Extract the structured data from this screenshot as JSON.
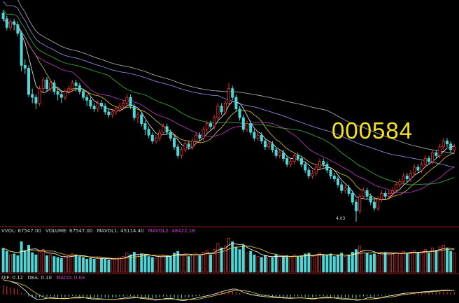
{
  "ticker": "000584",
  "colors": {
    "up": "#e83434",
    "down": "#4fd6d6",
    "ma": [
      "#ffffff",
      "#f0d040",
      "#d040d0",
      "#40c040",
      "#a0a0ff",
      "#c0c0c0"
    ],
    "divider": "#8b1c1c",
    "volume_label": "#d0d0d0",
    "mavol2_label": "#d040d0",
    "macd_label": "#d040d0"
  },
  "volume_legend": {
    "vvol": "VVOL: 67547.00",
    "volume": "VOLUME: 67547.00",
    "mavol1": "MAVOL1: 45114.40",
    "mavol2": "MAVOL2: 48422.18"
  },
  "macd_legend": {
    "dif": "DIF: 0.12",
    "dea": "DEA: 0.10",
    "macd": "MACD: 0.03"
  },
  "chart_data": {
    "type": "candlestick",
    "title": "",
    "xlabel": "",
    "ylabel": "",
    "grid": false,
    "ylim": [
      4.0,
      11.5
    ],
    "low_annotation": "4.03",
    "candles": [
      [
        11.2,
        11.0,
        11.3,
        10.9
      ],
      [
        11.0,
        10.7,
        11.1,
        10.6
      ],
      [
        10.7,
        10.9,
        11.0,
        10.6
      ],
      [
        10.9,
        10.8,
        11.0,
        10.6
      ],
      [
        10.8,
        10.5,
        10.9,
        10.4
      ],
      [
        10.5,
        9.4,
        10.6,
        9.2
      ],
      [
        9.4,
        9.3,
        9.6,
        9.1
      ],
      [
        9.3,
        8.4,
        9.4,
        8.3
      ],
      [
        8.4,
        8.3,
        8.6,
        8.1
      ],
      [
        8.3,
        8.1,
        8.4,
        7.9
      ],
      [
        8.1,
        8.6,
        8.7,
        8.0
      ],
      [
        8.6,
        8.9,
        9.0,
        8.5
      ],
      [
        8.9,
        8.6,
        9.0,
        8.5
      ],
      [
        8.6,
        8.8,
        8.9,
        8.5
      ],
      [
        8.8,
        8.5,
        8.9,
        8.4
      ],
      [
        8.5,
        8.4,
        8.6,
        8.2
      ],
      [
        8.4,
        8.3,
        8.5,
        8.1
      ],
      [
        8.3,
        8.5,
        8.6,
        8.2
      ],
      [
        8.5,
        8.6,
        8.7,
        8.4
      ],
      [
        8.6,
        8.8,
        8.9,
        8.5
      ],
      [
        8.8,
        8.7,
        8.9,
        8.5
      ],
      [
        8.7,
        8.5,
        8.8,
        8.4
      ],
      [
        8.5,
        8.3,
        8.6,
        8.2
      ],
      [
        8.3,
        8.2,
        8.4,
        8.0
      ],
      [
        8.2,
        8.0,
        8.3,
        7.9
      ],
      [
        8.0,
        7.9,
        8.1,
        7.8
      ],
      [
        7.9,
        8.1,
        8.2,
        7.8
      ],
      [
        8.1,
        8.0,
        8.2,
        7.9
      ],
      [
        8.0,
        7.8,
        8.1,
        7.7
      ],
      [
        7.8,
        7.7,
        7.9,
        7.6
      ],
      [
        7.7,
        7.8,
        7.9,
        7.6
      ],
      [
        7.8,
        7.9,
        8.0,
        7.7
      ],
      [
        7.9,
        8.0,
        8.1,
        7.8
      ],
      [
        8.0,
        8.1,
        8.2,
        7.9
      ],
      [
        8.1,
        8.3,
        8.4,
        8.0
      ],
      [
        8.3,
        8.0,
        8.4,
        7.9
      ],
      [
        8.0,
        7.6,
        8.1,
        7.5
      ],
      [
        7.6,
        7.7,
        7.8,
        7.4
      ],
      [
        7.7,
        7.4,
        7.8,
        7.3
      ],
      [
        7.4,
        7.2,
        7.5,
        7.0
      ],
      [
        7.2,
        7.0,
        7.3,
        6.9
      ],
      [
        7.0,
        6.8,
        7.1,
        6.7
      ],
      [
        6.8,
        6.9,
        7.0,
        6.7
      ],
      [
        6.9,
        7.1,
        7.2,
        6.8
      ],
      [
        7.1,
        7.3,
        7.4,
        7.0
      ],
      [
        7.3,
        7.1,
        7.4,
        7.0
      ],
      [
        7.1,
        6.9,
        7.2,
        6.8
      ],
      [
        6.9,
        6.6,
        7.0,
        6.5
      ],
      [
        6.6,
        6.3,
        6.7,
        6.2
      ],
      [
        6.3,
        6.5,
        6.6,
        6.2
      ],
      [
        6.5,
        6.7,
        6.8,
        6.4
      ],
      [
        6.7,
        6.6,
        6.8,
        6.5
      ],
      [
        6.6,
        6.8,
        6.9,
        6.5
      ],
      [
        6.8,
        7.0,
        7.1,
        6.7
      ],
      [
        7.0,
        6.9,
        7.1,
        6.8
      ],
      [
        6.9,
        7.2,
        7.3,
        6.8
      ],
      [
        7.2,
        7.4,
        7.5,
        7.1
      ],
      [
        7.4,
        7.3,
        7.5,
        7.2
      ],
      [
        7.3,
        7.6,
        7.7,
        7.2
      ],
      [
        7.6,
        8.0,
        8.1,
        7.5
      ],
      [
        8.0,
        7.8,
        8.1,
        7.7
      ],
      [
        7.8,
        8.1,
        8.2,
        7.7
      ],
      [
        8.1,
        8.6,
        8.8,
        8.0
      ],
      [
        8.6,
        8.3,
        8.7,
        8.2
      ],
      [
        8.3,
        7.9,
        8.4,
        7.8
      ],
      [
        7.9,
        7.6,
        8.0,
        7.5
      ],
      [
        7.6,
        7.2,
        7.7,
        7.1
      ],
      [
        7.2,
        7.4,
        7.5,
        7.1
      ],
      [
        7.4,
        7.1,
        7.5,
        7.0
      ],
      [
        7.1,
        6.9,
        7.2,
        6.8
      ],
      [
        6.9,
        7.0,
        7.1,
        6.8
      ],
      [
        7.0,
        6.8,
        7.1,
        6.7
      ],
      [
        6.8,
        6.6,
        6.9,
        6.5
      ],
      [
        6.6,
        6.7,
        6.8,
        6.5
      ],
      [
        6.7,
        6.5,
        6.8,
        6.4
      ],
      [
        6.5,
        6.3,
        6.6,
        6.2
      ],
      [
        6.3,
        6.4,
        6.5,
        6.2
      ],
      [
        6.4,
        6.2,
        6.5,
        6.1
      ],
      [
        6.2,
        6.0,
        6.3,
        5.9
      ],
      [
        6.0,
        6.1,
        6.2,
        5.9
      ],
      [
        6.1,
        6.3,
        6.4,
        6.0
      ],
      [
        6.3,
        6.2,
        6.4,
        6.1
      ],
      [
        6.2,
        6.0,
        6.3,
        5.9
      ],
      [
        6.0,
        5.8,
        6.1,
        5.7
      ],
      [
        5.8,
        5.6,
        5.9,
        5.5
      ],
      [
        5.6,
        5.7,
        5.8,
        5.5
      ],
      [
        5.7,
        5.9,
        6.0,
        5.6
      ],
      [
        5.9,
        6.1,
        6.2,
        5.8
      ],
      [
        6.1,
        6.0,
        6.2,
        5.9
      ],
      [
        6.0,
        5.8,
        6.1,
        5.7
      ],
      [
        5.8,
        5.6,
        5.9,
        5.5
      ],
      [
        5.6,
        5.5,
        5.7,
        5.4
      ],
      [
        5.5,
        5.3,
        5.6,
        5.2
      ],
      [
        5.3,
        5.1,
        5.4,
        5.0
      ],
      [
        5.1,
        5.2,
        5.3,
        5.0
      ],
      [
        5.2,
        5.0,
        5.3,
        4.9
      ],
      [
        5.0,
        4.7,
        5.1,
        4.6
      ],
      [
        4.7,
        4.4,
        4.8,
        4.03
      ],
      [
        4.4,
        4.9,
        5.0,
        4.3
      ],
      [
        4.9,
        5.1,
        5.2,
        4.8
      ],
      [
        5.1,
        4.9,
        5.2,
        4.8
      ],
      [
        4.9,
        4.7,
        5.0,
        4.6
      ],
      [
        4.7,
        4.5,
        4.8,
        4.4
      ],
      [
        4.5,
        4.8,
        4.9,
        4.4
      ],
      [
        4.8,
        5.0,
        5.1,
        4.7
      ],
      [
        5.0,
        4.9,
        5.1,
        4.8
      ],
      [
        4.9,
        5.0,
        5.1,
        4.8
      ],
      [
        5.0,
        5.1,
        5.2,
        4.9
      ],
      [
        5.1,
        5.3,
        5.4,
        5.0
      ],
      [
        5.3,
        5.4,
        5.5,
        5.2
      ],
      [
        5.4,
        5.6,
        5.7,
        5.3
      ],
      [
        5.6,
        5.5,
        5.7,
        5.4
      ],
      [
        5.5,
        5.7,
        5.8,
        5.4
      ],
      [
        5.7,
        5.9,
        6.0,
        5.6
      ],
      [
        5.9,
        5.8,
        6.0,
        5.7
      ],
      [
        5.8,
        6.0,
        6.1,
        5.7
      ],
      [
        6.0,
        6.2,
        6.3,
        5.9
      ],
      [
        6.2,
        6.1,
        6.3,
        6.0
      ],
      [
        6.1,
        6.4,
        6.5,
        6.0
      ],
      [
        6.4,
        6.3,
        6.5,
        6.2
      ],
      [
        6.3,
        6.6,
        6.7,
        6.2
      ],
      [
        6.6,
        6.8,
        6.9,
        6.5
      ],
      [
        6.8,
        6.7,
        6.9,
        6.6
      ],
      [
        6.7,
        6.5,
        6.8,
        6.4
      ],
      [
        6.5,
        6.6,
        6.7,
        6.4
      ]
    ],
    "volume": [
      55,
      48,
      40,
      42,
      38,
      70,
      50,
      62,
      45,
      40,
      48,
      52,
      38,
      40,
      36,
      34,
      32,
      36,
      38,
      42,
      40,
      36,
      34,
      30,
      32,
      30,
      34,
      32,
      30,
      28,
      30,
      32,
      34,
      36,
      44,
      40,
      46,
      38,
      42,
      40,
      36,
      34,
      32,
      36,
      40,
      38,
      36,
      44,
      48,
      38,
      42,
      36,
      40,
      44,
      38,
      46,
      50,
      40,
      52,
      66,
      56,
      60,
      78,
      70,
      58,
      52,
      62,
      44,
      48,
      40,
      36,
      34,
      38,
      36,
      34,
      40,
      34,
      36,
      38,
      34,
      40,
      36,
      38,
      42,
      44,
      36,
      40,
      44,
      38,
      40,
      42,
      36,
      38,
      44,
      36,
      38,
      46,
      52,
      60,
      50,
      44,
      40,
      42,
      38,
      46,
      44,
      40,
      42,
      46,
      44,
      48,
      42,
      46,
      50,
      44,
      48,
      52,
      44,
      56,
      50,
      58,
      62,
      54,
      48,
      44
    ],
    "macd": [
      0.5,
      0.45,
      0.4,
      0.35,
      0.3,
      0.1,
      0.05,
      -0.1,
      -0.15,
      -0.2,
      -0.15,
      -0.1,
      -0.12,
      -0.1,
      -0.12,
      -0.14,
      -0.15,
      -0.13,
      -0.11,
      -0.08,
      -0.08,
      -0.1,
      -0.12,
      -0.14,
      -0.16,
      -0.17,
      -0.15,
      -0.15,
      -0.17,
      -0.18,
      -0.16,
      -0.14,
      -0.12,
      -0.1,
      -0.06,
      -0.08,
      -0.12,
      -0.12,
      -0.14,
      -0.16,
      -0.18,
      -0.2,
      -0.18,
      -0.15,
      -0.11,
      -0.12,
      -0.14,
      -0.18,
      -0.22,
      -0.2,
      -0.16,
      -0.15,
      -0.12,
      -0.08,
      -0.08,
      -0.04,
      0.0,
      0.0,
      0.05,
      0.12,
      0.12,
      0.15,
      0.22,
      0.2,
      0.14,
      0.08,
      0.02,
      0.02,
      -0.02,
      -0.05,
      -0.05,
      -0.07,
      -0.09,
      -0.08,
      -0.1,
      -0.12,
      -0.1,
      -0.12,
      -0.14,
      -0.12,
      -0.1,
      -0.1,
      -0.12,
      -0.14,
      -0.16,
      -0.14,
      -0.11,
      -0.08,
      -0.08,
      -0.1,
      -0.12,
      -0.13,
      -0.15,
      -0.17,
      -0.15,
      -0.16,
      -0.19,
      -0.22,
      -0.15,
      -0.1,
      -0.1,
      -0.12,
      -0.14,
      -0.1,
      -0.06,
      -0.05,
      -0.03,
      -0.01,
      0.02,
      0.04,
      0.06,
      0.05,
      0.07,
      0.09,
      0.08,
      0.1,
      0.12,
      0.11,
      0.14,
      0.13,
      0.15,
      0.17,
      0.15,
      0.12,
      0.12
    ]
  }
}
